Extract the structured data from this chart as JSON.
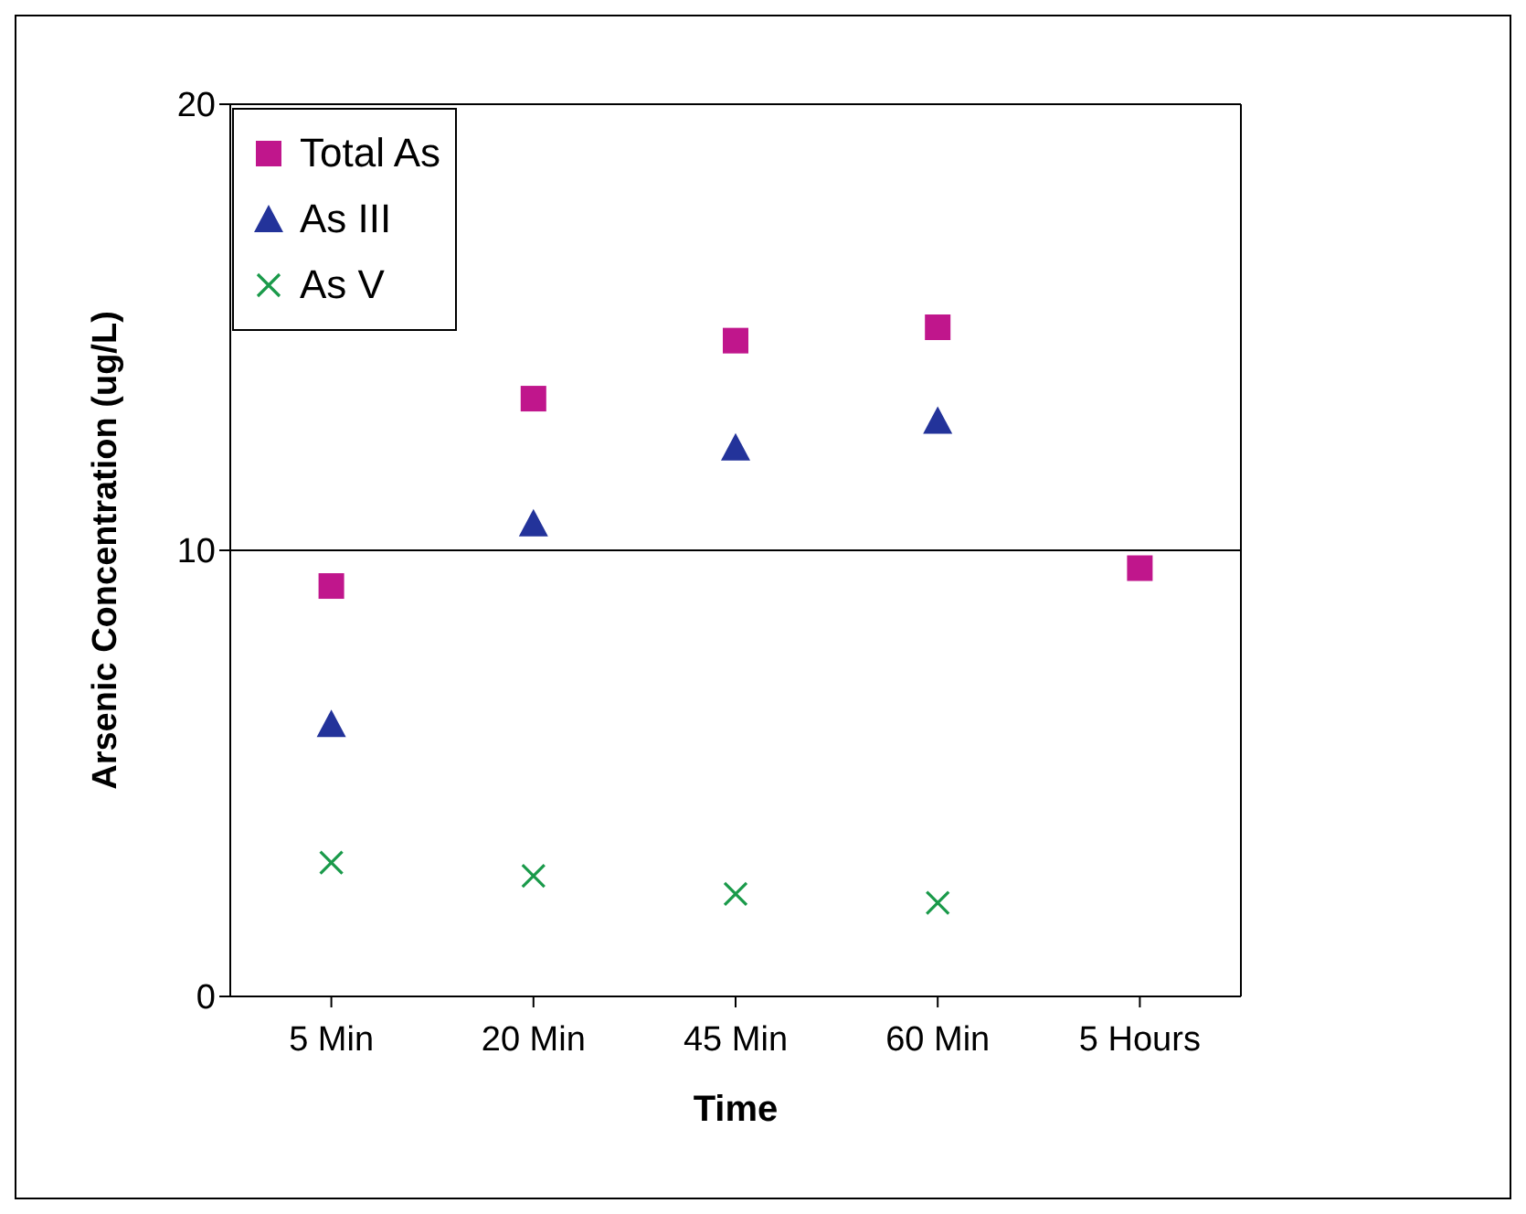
{
  "chart_data": {
    "type": "scatter",
    "xlabel": "Time",
    "ylabel": "Arsenic Concentration (ug/L)",
    "categories": [
      "5 Min",
      "20 Min",
      "45 Min",
      "60 Min",
      "5 Hours"
    ],
    "series": [
      {
        "name": "Total As",
        "color": "#c0168c",
        "marker": "square",
        "values": [
          9.2,
          13.4,
          14.7,
          15.0,
          9.6
        ]
      },
      {
        "name": "As III",
        "color": "#23339a",
        "marker": "triangle",
        "values": [
          6.1,
          10.6,
          12.3,
          12.9,
          null
        ]
      },
      {
        "name": "As V",
        "color": "#1a9a4a",
        "marker": "cross",
        "values": [
          3.0,
          2.7,
          2.3,
          2.1,
          null
        ]
      }
    ],
    "ylim": [
      0,
      20
    ],
    "yticks": [
      0,
      10,
      20
    ],
    "grid": "y",
    "legend": "top left"
  }
}
